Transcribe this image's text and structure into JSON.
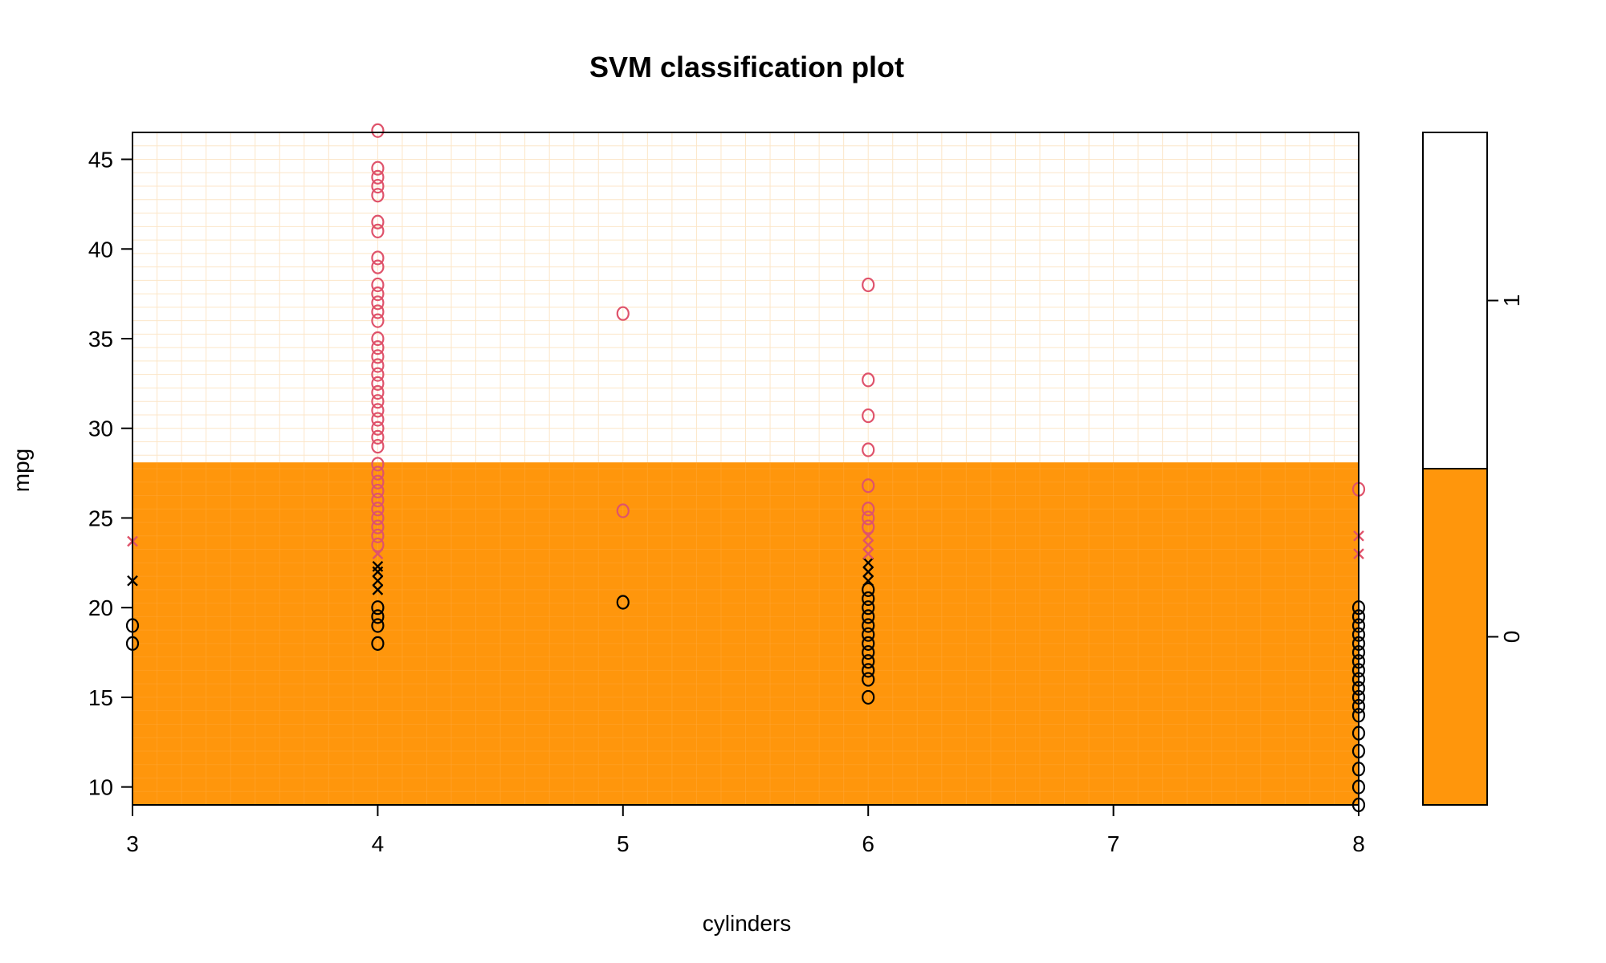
{
  "chart_data": {
    "type": "scatter",
    "title": "SVM classification plot",
    "xlabel": "cylinders",
    "ylabel": "mpg",
    "xlim": [
      3,
      8
    ],
    "ylim": [
      9,
      46.5
    ],
    "xticks": [
      "3",
      "4",
      "5",
      "6",
      "7",
      "8"
    ],
    "yticks": [
      "10",
      "15",
      "20",
      "25",
      "30",
      "35",
      "40",
      "45"
    ],
    "decision_boundary_mpg": 28.1,
    "regions": [
      {
        "class": "0",
        "color": "#FF960C",
        "mpg_range": [
          9,
          28.1
        ]
      },
      {
        "class": "1",
        "color": "#FFFFFF",
        "mpg_range": [
          28.1,
          46.5
        ]
      }
    ],
    "legend": {
      "placement": "right",
      "levels": [
        "0",
        "1"
      ],
      "colors": [
        "#FF960C",
        "#FFFFFF"
      ],
      "split_fraction": 0.5
    },
    "colors": {
      "class0": "#000000",
      "class1": "#DF536B",
      "region0": "#FF960C",
      "grid": "#FCE6C8"
    },
    "series": [
      {
        "class": "0",
        "symbol": "o",
        "points": [
          [
            3,
            18
          ],
          [
            3,
            19
          ],
          [
            4,
            18
          ],
          [
            4,
            19
          ],
          [
            4,
            19.5
          ],
          [
            4,
            20
          ],
          [
            5,
            20.3
          ],
          [
            6,
            15
          ],
          [
            6,
            16
          ],
          [
            6,
            16.5
          ],
          [
            6,
            17
          ],
          [
            6,
            17.5
          ],
          [
            6,
            18
          ],
          [
            6,
            18.5
          ],
          [
            6,
            19
          ],
          [
            6,
            19.5
          ],
          [
            6,
            20
          ],
          [
            6,
            20.5
          ],
          [
            6,
            21
          ],
          [
            8,
            9
          ],
          [
            8,
            10
          ],
          [
            8,
            11
          ],
          [
            8,
            12
          ],
          [
            8,
            13
          ],
          [
            8,
            14
          ],
          [
            8,
            14.5
          ],
          [
            8,
            15
          ],
          [
            8,
            15.5
          ],
          [
            8,
            16
          ],
          [
            8,
            16.5
          ],
          [
            8,
            17
          ],
          [
            8,
            17.5
          ],
          [
            8,
            18
          ],
          [
            8,
            18.5
          ],
          [
            8,
            19
          ],
          [
            8,
            19.5
          ],
          [
            8,
            20
          ]
        ]
      },
      {
        "class": "0",
        "symbol": "x",
        "points": [
          [
            3,
            21.5
          ],
          [
            4,
            21
          ],
          [
            4,
            21.5
          ],
          [
            4,
            22
          ],
          [
            4,
            22.3
          ],
          [
            6,
            21.5
          ],
          [
            6,
            22
          ],
          [
            6,
            22.5
          ]
        ]
      },
      {
        "class": "1",
        "symbol": "o",
        "points": [
          [
            4,
            23.5
          ],
          [
            4,
            24
          ],
          [
            4,
            24.5
          ],
          [
            4,
            25
          ],
          [
            4,
            25.5
          ],
          [
            4,
            26
          ],
          [
            4,
            26.5
          ],
          [
            4,
            27
          ],
          [
            4,
            27.5
          ],
          [
            4,
            28
          ],
          [
            4,
            29
          ],
          [
            4,
            29.5
          ],
          [
            4,
            30
          ],
          [
            4,
            30.5
          ],
          [
            4,
            31
          ],
          [
            4,
            31.5
          ],
          [
            4,
            32
          ],
          [
            4,
            32.5
          ],
          [
            4,
            33
          ],
          [
            4,
            33.5
          ],
          [
            4,
            34
          ],
          [
            4,
            34.5
          ],
          [
            4,
            35
          ],
          [
            4,
            36
          ],
          [
            4,
            36.5
          ],
          [
            4,
            37
          ],
          [
            4,
            37.5
          ],
          [
            4,
            38
          ],
          [
            4,
            39
          ],
          [
            4,
            39.5
          ],
          [
            4,
            41
          ],
          [
            4,
            41.5
          ],
          [
            4,
            43
          ],
          [
            4,
            43.5
          ],
          [
            4,
            44
          ],
          [
            4,
            44.5
          ],
          [
            4,
            46.6
          ],
          [
            5,
            25.4
          ],
          [
            5,
            36.4
          ],
          [
            6,
            24.5
          ],
          [
            6,
            25
          ],
          [
            6,
            25.5
          ],
          [
            6,
            26.8
          ],
          [
            6,
            28.8
          ],
          [
            6,
            30.7
          ],
          [
            6,
            32.7
          ],
          [
            6,
            38
          ],
          [
            8,
            26.6
          ]
        ]
      },
      {
        "class": "1",
        "symbol": "x",
        "points": [
          [
            3,
            23.7
          ],
          [
            4,
            23
          ],
          [
            6,
            23
          ],
          [
            6,
            23.5
          ],
          [
            6,
            24
          ],
          [
            8,
            23
          ],
          [
            8,
            24
          ]
        ]
      }
    ]
  }
}
